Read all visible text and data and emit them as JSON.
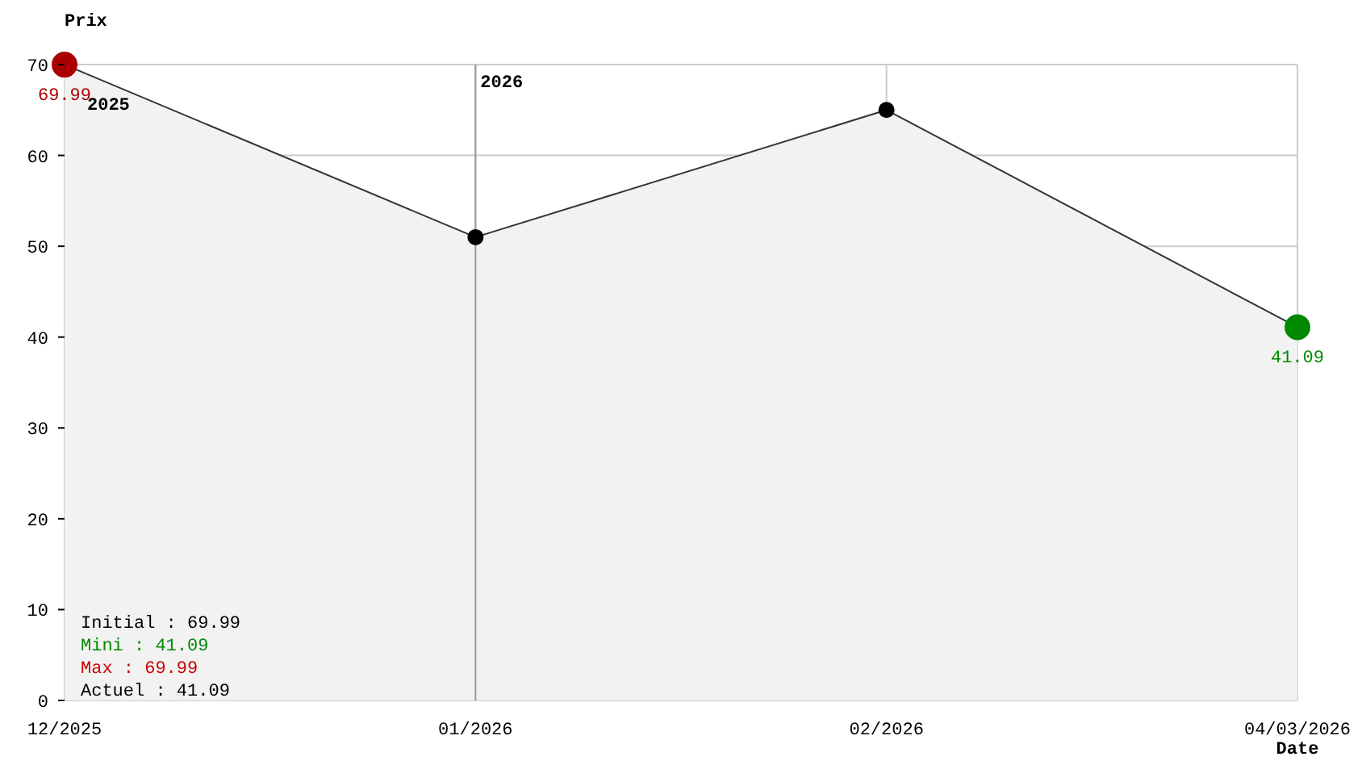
{
  "chart_data": {
    "type": "area",
    "ylabel": "Prix",
    "xlabel": "Date",
    "x": [
      "2025-12-01",
      "2026-01-01",
      "2026-02-01",
      "2026-03-04"
    ],
    "series": [
      {
        "color": "#333333",
        "colors": [
          "#aa0000",
          "#000000",
          "#000000",
          "#008800"
        ],
        "values": [
          69.99,
          51,
          65,
          41.09
        ],
        "value_labels": [
          "69.99",
          null,
          null,
          "41.09"
        ]
      }
    ],
    "xlim": [
      "2025-12-01",
      "2026-03-04"
    ],
    "xticks": [
      {
        "value": "2025-12-01",
        "label": "12/2025"
      },
      {
        "value": "2026-01-01",
        "label": "01/2026"
      },
      {
        "value": "2026-02-01",
        "label": "02/2026"
      },
      {
        "value": "2026-03-04",
        "label": "04/03/2026"
      }
    ],
    "ylim": [
      0,
      70
    ],
    "yticks": [
      0,
      10,
      20,
      30,
      40,
      50,
      60,
      70
    ],
    "grid": true,
    "marker": "circle",
    "ref_lines": [
      {
        "axis": "x",
        "value": "2026-01-01",
        "label": "2026"
      }
    ],
    "annotations": [
      {
        "text": "2025",
        "x": "2025-12-01",
        "y": 65
      },
      "Initial : 69.99",
      "Mini : 41.09",
      "Max : 69.99",
      "Actuel : 41.09"
    ]
  }
}
